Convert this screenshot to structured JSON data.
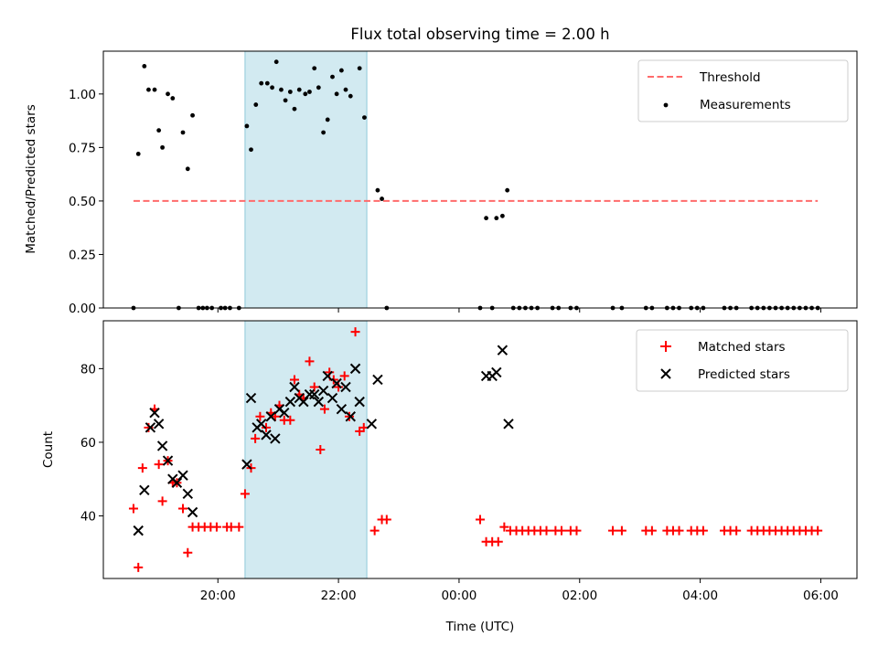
{
  "figure": {
    "title": "Flux total observing time = 2.00 h",
    "xlabel": "Time (UTC)",
    "x_tick_labels": [
      "20:00",
      "22:00",
      "00:00",
      "02:00",
      "04:00",
      "06:00"
    ],
    "x_tick_hours": [
      20,
      22,
      24,
      26,
      28,
      30
    ],
    "xlim": [
      18.1,
      30.6
    ],
    "highlight_span_hours": [
      20.45,
      22.47
    ],
    "colors": {
      "highlight": "#add8e6",
      "threshold": "#ff6b6b",
      "matched": "#ff0000",
      "predicted": "#000000",
      "measurement": "#000000"
    }
  },
  "chart_data": [
    {
      "type": "scatter",
      "ylabel": "Matched/Predicted stars",
      "ylim": [
        0,
        1.2
      ],
      "y_ticks": [
        0,
        0.25,
        0.5,
        0.75,
        1.0
      ],
      "y_tick_labels": [
        "0.00",
        "0.25",
        "0.50",
        "0.75",
        "1.00"
      ],
      "legend": {
        "placement": "top-right",
        "threshold_label": "Threshold",
        "measurements_label": "Measurements"
      },
      "threshold": {
        "y": 0.5,
        "x_range": [
          18.6,
          29.95
        ]
      },
      "series": [
        {
          "name": "Measurements",
          "points": [
            [
              18.6,
              0.0
            ],
            [
              18.68,
              0.72
            ],
            [
              18.78,
              1.13
            ],
            [
              18.85,
              1.02
            ],
            [
              18.95,
              1.02
            ],
            [
              19.02,
              0.83
            ],
            [
              19.08,
              0.75
            ],
            [
              19.17,
              1.0
            ],
            [
              19.25,
              0.98
            ],
            [
              19.35,
              0.0
            ],
            [
              19.42,
              0.82
            ],
            [
              19.5,
              0.65
            ],
            [
              19.58,
              0.9
            ],
            [
              19.68,
              0.0
            ],
            [
              19.75,
              0.0
            ],
            [
              19.82,
              0.0
            ],
            [
              19.9,
              0.0
            ],
            [
              20.05,
              0.0
            ],
            [
              20.12,
              0.0
            ],
            [
              20.2,
              0.0
            ],
            [
              20.35,
              0.0
            ],
            [
              20.48,
              0.85
            ],
            [
              20.55,
              0.74
            ],
            [
              20.63,
              0.95
            ],
            [
              20.72,
              1.05
            ],
            [
              20.82,
              1.05
            ],
            [
              20.9,
              1.03
            ],
            [
              20.97,
              1.15
            ],
            [
              21.05,
              1.02
            ],
            [
              21.12,
              0.97
            ],
            [
              21.2,
              1.01
            ],
            [
              21.27,
              0.93
            ],
            [
              21.35,
              1.02
            ],
            [
              21.45,
              1.0
            ],
            [
              21.52,
              1.01
            ],
            [
              21.6,
              1.12
            ],
            [
              21.67,
              1.03
            ],
            [
              21.75,
              0.82
            ],
            [
              21.82,
              0.88
            ],
            [
              21.9,
              1.08
            ],
            [
              21.97,
              1.0
            ],
            [
              22.05,
              1.11
            ],
            [
              22.12,
              1.02
            ],
            [
              22.2,
              0.99
            ],
            [
              22.35,
              1.12
            ],
            [
              22.43,
              0.89
            ],
            [
              22.65,
              0.55
            ],
            [
              22.72,
              0.51
            ],
            [
              22.8,
              0.0
            ],
            [
              24.35,
              0.0
            ],
            [
              24.45,
              0.42
            ],
            [
              24.55,
              0.0
            ],
            [
              24.62,
              0.42
            ],
            [
              24.72,
              0.43
            ],
            [
              24.8,
              0.55
            ],
            [
              24.9,
              0.0
            ],
            [
              25.0,
              0.0
            ],
            [
              25.1,
              0.0
            ],
            [
              25.2,
              0.0
            ],
            [
              25.3,
              0.0
            ],
            [
              25.55,
              0.0
            ],
            [
              25.65,
              0.0
            ],
            [
              25.85,
              0.0
            ],
            [
              25.95,
              0.0
            ],
            [
              26.55,
              0.0
            ],
            [
              26.7,
              0.0
            ],
            [
              27.1,
              0.0
            ],
            [
              27.2,
              0.0
            ],
            [
              27.45,
              0.0
            ],
            [
              27.55,
              0.0
            ],
            [
              27.65,
              0.0
            ],
            [
              27.85,
              0.0
            ],
            [
              27.95,
              0.0
            ],
            [
              28.05,
              0.0
            ],
            [
              28.4,
              0.0
            ],
            [
              28.5,
              0.0
            ],
            [
              28.6,
              0.0
            ],
            [
              28.85,
              0.0
            ],
            [
              28.95,
              0.0
            ],
            [
              29.05,
              0.0
            ],
            [
              29.15,
              0.0
            ],
            [
              29.25,
              0.0
            ],
            [
              29.35,
              0.0
            ],
            [
              29.45,
              0.0
            ],
            [
              29.55,
              0.0
            ],
            [
              29.65,
              0.0
            ],
            [
              29.75,
              0.0
            ],
            [
              29.85,
              0.0
            ],
            [
              29.95,
              0.0
            ]
          ]
        }
      ]
    },
    {
      "type": "scatter",
      "ylabel": "Count",
      "ylim": [
        23,
        93
      ],
      "y_ticks": [
        40,
        60,
        80
      ],
      "y_tick_labels": [
        "40",
        "60",
        "80"
      ],
      "legend": {
        "placement": "top-right"
      },
      "series": [
        {
          "name": "Matched stars",
          "points": [
            [
              18.6,
              42
            ],
            [
              18.68,
              26
            ],
            [
              18.75,
              53
            ],
            [
              18.85,
              64
            ],
            [
              18.95,
              69
            ],
            [
              19.02,
              54
            ],
            [
              19.08,
              44
            ],
            [
              19.17,
              55
            ],
            [
              19.25,
              49
            ],
            [
              19.32,
              49
            ],
            [
              19.42,
              42
            ],
            [
              19.5,
              30
            ],
            [
              19.58,
              37
            ],
            [
              19.68,
              37
            ],
            [
              19.78,
              37
            ],
            [
              19.88,
              37
            ],
            [
              19.98,
              37
            ],
            [
              20.15,
              37
            ],
            [
              20.22,
              37
            ],
            [
              20.35,
              37
            ],
            [
              20.45,
              46
            ],
            [
              20.55,
              53
            ],
            [
              20.62,
              61
            ],
            [
              20.7,
              67
            ],
            [
              20.8,
              64
            ],
            [
              20.88,
              68
            ],
            [
              20.95,
              67
            ],
            [
              21.02,
              70
            ],
            [
              21.1,
              66
            ],
            [
              21.2,
              66
            ],
            [
              21.27,
              77
            ],
            [
              21.35,
              73
            ],
            [
              21.42,
              72
            ],
            [
              21.52,
              82
            ],
            [
              21.6,
              75
            ],
            [
              21.7,
              58
            ],
            [
              21.77,
              69
            ],
            [
              21.85,
              79
            ],
            [
              21.92,
              77
            ],
            [
              22.0,
              75
            ],
            [
              22.1,
              78
            ],
            [
              22.18,
              67
            ],
            [
              22.28,
              90
            ],
            [
              22.35,
              63
            ],
            [
              22.42,
              64
            ],
            [
              22.6,
              36
            ],
            [
              22.72,
              39
            ],
            [
              22.8,
              39
            ],
            [
              24.35,
              39
            ],
            [
              24.45,
              33
            ],
            [
              24.55,
              33
            ],
            [
              24.65,
              33
            ],
            [
              24.75,
              37
            ],
            [
              24.85,
              36
            ],
            [
              24.95,
              36
            ],
            [
              25.05,
              36
            ],
            [
              25.15,
              36
            ],
            [
              25.25,
              36
            ],
            [
              25.35,
              36
            ],
            [
              25.45,
              36
            ],
            [
              25.6,
              36
            ],
            [
              25.7,
              36
            ],
            [
              25.85,
              36
            ],
            [
              25.95,
              36
            ],
            [
              26.55,
              36
            ],
            [
              26.7,
              36
            ],
            [
              27.1,
              36
            ],
            [
              27.2,
              36
            ],
            [
              27.45,
              36
            ],
            [
              27.55,
              36
            ],
            [
              27.65,
              36
            ],
            [
              27.85,
              36
            ],
            [
              27.95,
              36
            ],
            [
              28.05,
              36
            ],
            [
              28.4,
              36
            ],
            [
              28.5,
              36
            ],
            [
              28.6,
              36
            ],
            [
              28.85,
              36
            ],
            [
              28.95,
              36
            ],
            [
              29.05,
              36
            ],
            [
              29.15,
              36
            ],
            [
              29.25,
              36
            ],
            [
              29.35,
              36
            ],
            [
              29.45,
              36
            ],
            [
              29.55,
              36
            ],
            [
              29.65,
              36
            ],
            [
              29.75,
              36
            ],
            [
              29.85,
              36
            ],
            [
              29.95,
              36
            ]
          ]
        },
        {
          "name": "Predicted stars",
          "points": [
            [
              18.68,
              36
            ],
            [
              18.78,
              47
            ],
            [
              18.88,
              64
            ],
            [
              18.95,
              68
            ],
            [
              19.02,
              65
            ],
            [
              19.08,
              59
            ],
            [
              19.17,
              55
            ],
            [
              19.25,
              50
            ],
            [
              19.32,
              49
            ],
            [
              19.42,
              51
            ],
            [
              19.5,
              46
            ],
            [
              19.58,
              41
            ],
            [
              20.48,
              54
            ],
            [
              20.55,
              72
            ],
            [
              20.65,
              64
            ],
            [
              20.72,
              65
            ],
            [
              20.8,
              62
            ],
            [
              20.88,
              67
            ],
            [
              20.95,
              61
            ],
            [
              21.02,
              69
            ],
            [
              21.1,
              68
            ],
            [
              21.2,
              71
            ],
            [
              21.27,
              75
            ],
            [
              21.35,
              72
            ],
            [
              21.42,
              71
            ],
            [
              21.52,
              73
            ],
            [
              21.6,
              73
            ],
            [
              21.67,
              71
            ],
            [
              21.75,
              74
            ],
            [
              21.82,
              78
            ],
            [
              21.9,
              72
            ],
            [
              21.97,
              76
            ],
            [
              22.05,
              69
            ],
            [
              22.12,
              75
            ],
            [
              22.2,
              67
            ],
            [
              22.28,
              80
            ],
            [
              22.35,
              71
            ],
            [
              22.55,
              65
            ],
            [
              22.65,
              77
            ],
            [
              24.45,
              78
            ],
            [
              24.55,
              78
            ],
            [
              24.62,
              79
            ],
            [
              24.72,
              85
            ],
            [
              24.82,
              65
            ]
          ]
        }
      ]
    }
  ]
}
